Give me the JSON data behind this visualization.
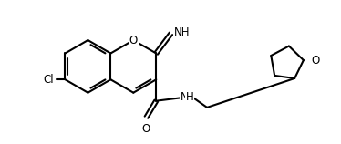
{
  "bg": "#ffffff",
  "lc": "#000000",
  "lw": 1.5,
  "fs": 8.5,
  "note": "6-chloro-2-imino-N-(oxolan-2-ylmethyl)chromene-3-carboxamide"
}
